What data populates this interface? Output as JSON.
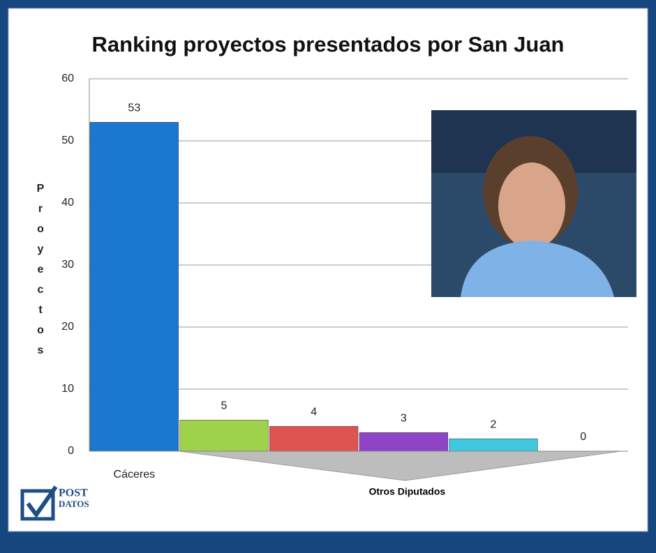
{
  "chart_data": {
    "type": "bar",
    "title": "Ranking proyectos presentados por San Juan",
    "ylabel": "Proyectos",
    "categories": [
      "Cáceres",
      null,
      null,
      null,
      null,
      null
    ],
    "values": [
      53,
      5,
      4,
      3,
      2,
      0
    ],
    "colors": [
      "#1a78d0",
      "#9ed24a",
      "#de5450",
      "#8e44c4",
      "#3fc8e0",
      "#999999"
    ],
    "ylim": [
      0,
      60
    ],
    "yticks": [
      0,
      10,
      20,
      30,
      40,
      50,
      60
    ],
    "grid": true,
    "annotation": "Otros Diputados",
    "logo": [
      "POST",
      "DATOS"
    ]
  }
}
